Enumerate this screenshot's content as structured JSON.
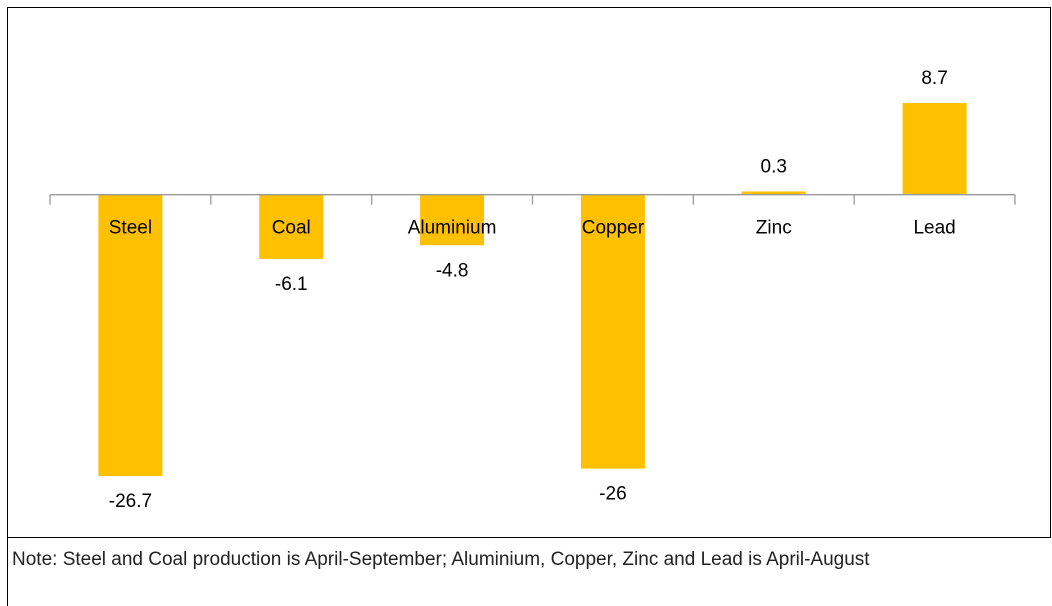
{
  "chart_data": {
    "type": "bar",
    "categories": [
      "Steel",
      "Coal",
      "Aluminium",
      "Copper",
      "Zinc",
      "Lead"
    ],
    "values": [
      -26.7,
      -6.1,
      -4.8,
      -26,
      0.3,
      8.7
    ],
    "color": "#ffc000"
  },
  "note": "Note: Steel and Coal production is April-September; Aluminium, Copper, Zinc and Lead is April-August"
}
